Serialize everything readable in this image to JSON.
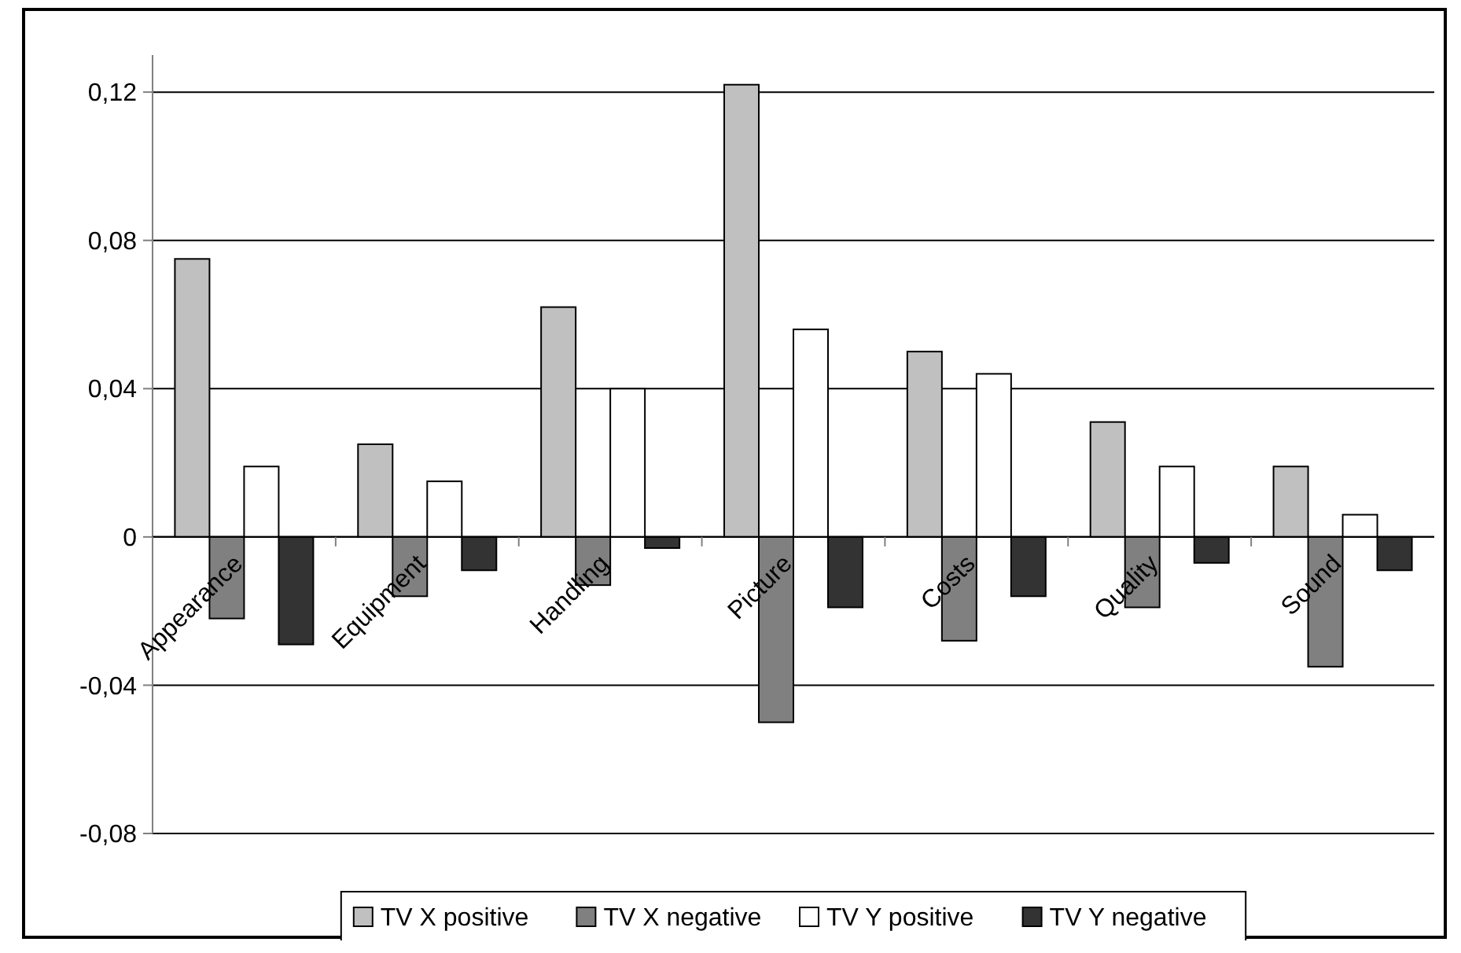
{
  "chart_data": {
    "type": "bar",
    "categories": [
      "Appearance",
      "Equipment",
      "Handling",
      "Picture",
      "Costs",
      "Quality",
      "Sound"
    ],
    "series": [
      {
        "name": "TV X positive",
        "color": "#c0c0c0",
        "values": [
          0.075,
          0.025,
          0.062,
          0.122,
          0.05,
          0.031,
          0.019
        ]
      },
      {
        "name": "TV X negative",
        "color": "#808080",
        "values": [
          -0.022,
          -0.016,
          -0.013,
          -0.05,
          -0.028,
          -0.019,
          -0.035
        ]
      },
      {
        "name": "TV Y positive",
        "color": "#ffffff",
        "values": [
          0.019,
          0.015,
          0.04,
          0.056,
          0.044,
          0.019,
          0.006
        ]
      },
      {
        "name": "TV Y negative",
        "color": "#333333",
        "values": [
          -0.029,
          -0.009,
          -0.003,
          -0.019,
          -0.016,
          -0.007,
          -0.009
        ]
      }
    ],
    "ylim": [
      -0.08,
      0.13
    ],
    "yticks": [
      {
        "value": -0.08,
        "label": "-0,08"
      },
      {
        "value": -0.04,
        "label": "-0,04"
      },
      {
        "value": 0,
        "label": "0"
      },
      {
        "value": 0.04,
        "label": "0,04"
      },
      {
        "value": 0.08,
        "label": "0,08"
      },
      {
        "value": 0.12,
        "label": "0,12"
      }
    ],
    "grid": "y",
    "legend": "bottom"
  }
}
